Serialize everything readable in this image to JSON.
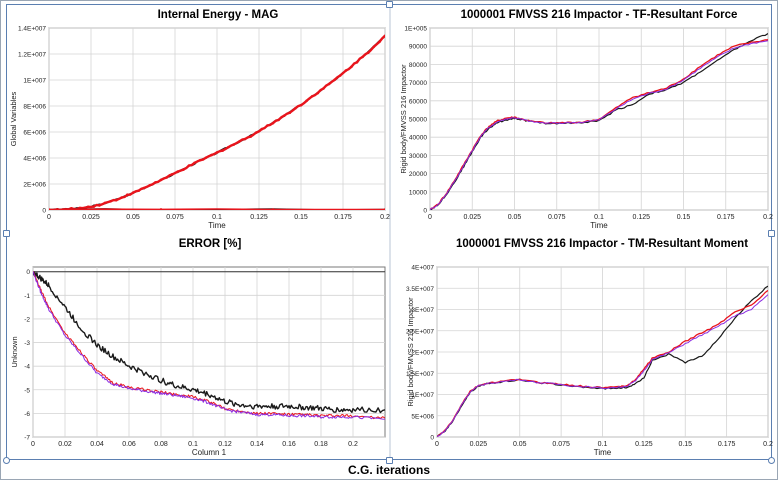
{
  "footer_title": "C.G. iterations",
  "colors": {
    "red": "#e8141c",
    "black": "#1a1a1a",
    "purple": "#8a2be2",
    "blue": "#3b3bd6",
    "grid": "#d4d4d4"
  },
  "chart_data": [
    {
      "id": "energy",
      "type": "line",
      "title": "Internal Energy - MAG",
      "xlabel": "Time",
      "ylabel": "Global Variables",
      "xlim": [
        0,
        0.2
      ],
      "ylim": [
        0,
        14000000
      ],
      "xticks": [
        0,
        0.025,
        0.05,
        0.075,
        0.1,
        0.125,
        0.15,
        0.175,
        0.2
      ],
      "xtick_labels": [
        "0",
        "0.025",
        "0.05",
        "0.075",
        "0.1",
        "0.125",
        "0.15",
        "0.175",
        "0.2"
      ],
      "yticks": [
        0,
        2000000,
        4000000,
        6000000,
        8000000,
        10000000,
        12000000,
        14000000
      ],
      "ytick_labels": [
        "0",
        "2E+006",
        "4E+006",
        "6E+006",
        "8E+006",
        "1E+007",
        "1.2E+007",
        "1.4E+007"
      ],
      "grid": true,
      "series": [
        {
          "color": "#1a1a1a",
          "width": 1.6,
          "x": [
            0,
            0.01,
            0.02,
            0.03,
            0.04,
            0.05,
            0.06,
            0.07,
            0.08,
            0.09,
            0.1,
            0.11,
            0.12,
            0.13,
            0.14,
            0.15,
            0.16,
            0.17,
            0.18,
            0.19,
            0.2
          ],
          "y": [
            0,
            40000,
            150000,
            400000,
            800000,
            1300000,
            1900000,
            2500000,
            3150000,
            3800000,
            4400000,
            5050000,
            5700000,
            6450000,
            7250000,
            8100000,
            9050000,
            10000000,
            11050000,
            12150000,
            13400000
          ]
        },
        {
          "color": "#e8141c",
          "width": 2.4,
          "markers": true,
          "x": [
            0,
            0.01,
            0.02,
            0.03,
            0.04,
            0.05,
            0.06,
            0.07,
            0.08,
            0.09,
            0.1,
            0.11,
            0.12,
            0.13,
            0.14,
            0.15,
            0.16,
            0.17,
            0.18,
            0.19,
            0.2
          ],
          "y": [
            0,
            40000,
            150000,
            400000,
            800000,
            1300000,
            1900000,
            2500000,
            3150000,
            3800000,
            4400000,
            5050000,
            5700000,
            6450000,
            7250000,
            8100000,
            9050000,
            10000000,
            11050000,
            12150000,
            13400000
          ]
        },
        {
          "color": "#1a1a1a",
          "width": 1.2,
          "x": [
            0,
            0.2
          ],
          "y": [
            50000,
            50000
          ]
        },
        {
          "color": "#e8141c",
          "width": 1.6,
          "markers": true,
          "x": [
            0,
            0.2
          ],
          "y": [
            30000,
            30000
          ]
        }
      ]
    },
    {
      "id": "force",
      "type": "line",
      "title": "1000001 FMVSS 216 Impactor - TF-Resultant Force",
      "xlabel": "Time",
      "ylabel": "Rigid body/FMVSS 216 Impactor",
      "xlim": [
        0,
        0.2
      ],
      "ylim": [
        0,
        100000
      ],
      "xticks": [
        0,
        0.025,
        0.05,
        0.075,
        0.1,
        0.125,
        0.15,
        0.175,
        0.2
      ],
      "xtick_labels": [
        "0",
        "0.025",
        "0.05",
        "0.075",
        "0.1",
        "0.125",
        "0.15",
        "0.175",
        "0.2"
      ],
      "yticks": [
        0,
        10000,
        20000,
        30000,
        40000,
        50000,
        60000,
        70000,
        80000,
        90000,
        100000
      ],
      "ytick_labels": [
        "0",
        "10000",
        "20000",
        "30000",
        "40000",
        "50000",
        "60000",
        "70000",
        "80000",
        "90000",
        "1E+005"
      ],
      "grid": true,
      "series": [
        {
          "color": "#1a1a1a",
          "width": 1.2,
          "x": [
            0,
            0.005,
            0.01,
            0.015,
            0.02,
            0.025,
            0.03,
            0.035,
            0.04,
            0.045,
            0.05,
            0.055,
            0.06,
            0.07,
            0.08,
            0.09,
            0.1,
            0.11,
            0.12,
            0.13,
            0.14,
            0.15,
            0.16,
            0.17,
            0.18,
            0.19,
            0.2
          ],
          "y": [
            0,
            3000,
            9000,
            16000,
            24000,
            32000,
            40000,
            45000,
            48000,
            49500,
            50500,
            49500,
            48500,
            47500,
            47800,
            48000,
            49000,
            55000,
            58000,
            64000,
            66000,
            70000,
            76000,
            82000,
            88000,
            93000,
            97000
          ]
        },
        {
          "color": "#e8141c",
          "width": 1.3,
          "x": [
            0,
            0.005,
            0.01,
            0.015,
            0.02,
            0.025,
            0.03,
            0.035,
            0.04,
            0.045,
            0.05,
            0.055,
            0.06,
            0.07,
            0.08,
            0.09,
            0.1,
            0.11,
            0.12,
            0.13,
            0.14,
            0.15,
            0.16,
            0.17,
            0.18,
            0.19,
            0.2
          ],
          "y": [
            0,
            3500,
            9500,
            17000,
            25000,
            33000,
            41000,
            46000,
            49000,
            50500,
            51000,
            49800,
            48700,
            47700,
            48000,
            48300,
            49800,
            56000,
            62000,
            64500,
            67000,
            72000,
            79000,
            85000,
            90000,
            92000,
            93500
          ]
        },
        {
          "color": "#8a2be2",
          "width": 1.0,
          "x": [
            0,
            0.005,
            0.01,
            0.015,
            0.02,
            0.025,
            0.03,
            0.035,
            0.04,
            0.045,
            0.05,
            0.055,
            0.06,
            0.07,
            0.08,
            0.09,
            0.1,
            0.11,
            0.12,
            0.13,
            0.14,
            0.15,
            0.16,
            0.17,
            0.18,
            0.19,
            0.2
          ],
          "y": [
            0,
            3200,
            9200,
            16500,
            24500,
            32500,
            40500,
            45500,
            48500,
            50000,
            50800,
            49600,
            48600,
            47600,
            47900,
            48200,
            49500,
            55500,
            61000,
            64200,
            66500,
            71500,
            78000,
            84000,
            89000,
            91500,
            93000
          ]
        }
      ]
    },
    {
      "id": "error",
      "type": "line",
      "title": "ERROR [%]",
      "xlabel": "Column 1",
      "ylabel": "Unknown",
      "xlim": [
        0,
        0.22
      ],
      "ylim": [
        -7,
        0.2
      ],
      "xticks": [
        0,
        0.02,
        0.04,
        0.06,
        0.08,
        0.1,
        0.12,
        0.14,
        0.16,
        0.18,
        0.2
      ],
      "xtick_labels": [
        "0",
        "0.02",
        "0.04",
        "0.06",
        "0.08",
        "0.1",
        "0.12",
        "0.14",
        "0.16",
        "0.18",
        "0.2"
      ],
      "yticks": [
        0,
        -1,
        -2,
        -3,
        -4,
        -5,
        -6,
        -7
      ],
      "ytick_labels": [
        "0",
        "-1",
        "-2",
        "-3",
        "-4",
        "-5",
        "-6",
        "-7"
      ],
      "grid": true,
      "zero_line": true,
      "series": [
        {
          "color": "#1a1a1a",
          "width": 1.4,
          "jagged": 0.12,
          "x": [
            0,
            0.005,
            0.01,
            0.02,
            0.03,
            0.04,
            0.05,
            0.06,
            0.07,
            0.08,
            0.09,
            0.1,
            0.11,
            0.12,
            0.13,
            0.14,
            0.15,
            0.16,
            0.17,
            0.18,
            0.19,
            0.2,
            0.22
          ],
          "y": [
            0,
            -0.3,
            -0.6,
            -1.5,
            -2.4,
            -3.1,
            -3.6,
            -4.0,
            -4.3,
            -4.6,
            -4.85,
            -5.0,
            -5.2,
            -5.5,
            -5.65,
            -5.7,
            -5.7,
            -5.7,
            -5.75,
            -5.8,
            -5.85,
            -5.85,
            -5.85
          ]
        },
        {
          "color": "#e8141c",
          "width": 1.0,
          "jagged": 0.06,
          "x": [
            0,
            0.005,
            0.01,
            0.02,
            0.03,
            0.04,
            0.05,
            0.06,
            0.07,
            0.08,
            0.09,
            0.1,
            0.11,
            0.12,
            0.13,
            0.14,
            0.15,
            0.16,
            0.17,
            0.18,
            0.19,
            0.2,
            0.22
          ],
          "y": [
            0,
            -0.8,
            -1.5,
            -2.6,
            -3.4,
            -4.2,
            -4.7,
            -4.9,
            -5.0,
            -5.1,
            -5.2,
            -5.3,
            -5.5,
            -5.8,
            -5.9,
            -6.0,
            -6.0,
            -6.05,
            -6.05,
            -6.1,
            -6.1,
            -6.1,
            -6.2
          ]
        },
        {
          "color": "#8a2be2",
          "width": 1.0,
          "jagged": 0.06,
          "x": [
            0,
            0.005,
            0.01,
            0.02,
            0.03,
            0.04,
            0.05,
            0.06,
            0.07,
            0.08,
            0.09,
            0.1,
            0.11,
            0.12,
            0.13,
            0.14,
            0.15,
            0.16,
            0.17,
            0.18,
            0.19,
            0.2,
            0.22
          ],
          "y": [
            0,
            -0.9,
            -1.6,
            -2.7,
            -3.5,
            -4.3,
            -4.75,
            -4.95,
            -5.05,
            -5.15,
            -5.25,
            -5.35,
            -5.55,
            -5.85,
            -5.95,
            -6.05,
            -6.05,
            -6.1,
            -6.1,
            -6.15,
            -6.15,
            -6.15,
            -6.25
          ]
        }
      ]
    },
    {
      "id": "moment",
      "type": "line",
      "title": "1000001 FMVSS 216 Impactor - TM-Resultant Moment",
      "xlabel": "Time",
      "ylabel": "Rigid body/FMVSS 216 Impactor",
      "xlim": [
        0,
        0.2
      ],
      "ylim": [
        0,
        40000000
      ],
      "xticks": [
        0,
        0.025,
        0.05,
        0.075,
        0.1,
        0.125,
        0.15,
        0.175,
        0.2
      ],
      "xtick_labels": [
        "0",
        "0.025",
        "0.05",
        "0.075",
        "0.1",
        "0.125",
        "0.15",
        "0.175",
        "0.2"
      ],
      "yticks": [
        0,
        5000000,
        10000000,
        15000000,
        20000000,
        25000000,
        30000000,
        35000000,
        40000000
      ],
      "ytick_labels": [
        "0",
        "5E+006",
        "1E+007",
        "1.5E+007",
        "2E+007",
        "2.5E+007",
        "3E+007",
        "3.5E+007",
        "4E+007"
      ],
      "grid": true,
      "series": [
        {
          "color": "#1a1a1a",
          "width": 1.2,
          "x": [
            0,
            0.005,
            0.01,
            0.015,
            0.02,
            0.025,
            0.03,
            0.04,
            0.05,
            0.06,
            0.07,
            0.08,
            0.09,
            0.1,
            0.11,
            0.115,
            0.12,
            0.125,
            0.13,
            0.14,
            0.15,
            0.16,
            0.17,
            0.18,
            0.19,
            0.2
          ],
          "y": [
            0,
            1500000,
            4000000,
            7500000,
            10500000,
            12000000,
            12500000,
            13000000,
            13500000,
            12800000,
            12500000,
            12000000,
            11700000,
            11400000,
            11500000,
            11700000,
            12500000,
            14000000,
            18000000,
            19500000,
            17500000,
            19000000,
            23000000,
            28000000,
            32000000,
            35500000
          ]
        },
        {
          "color": "#e8141c",
          "width": 1.3,
          "x": [
            0,
            0.005,
            0.01,
            0.015,
            0.02,
            0.025,
            0.03,
            0.04,
            0.05,
            0.06,
            0.07,
            0.08,
            0.09,
            0.1,
            0.11,
            0.115,
            0.12,
            0.125,
            0.13,
            0.14,
            0.15,
            0.16,
            0.17,
            0.18,
            0.19,
            0.2
          ],
          "y": [
            0,
            1600000,
            4200000,
            7800000,
            10700000,
            12100000,
            12600000,
            13100000,
            13600000,
            12900000,
            12600000,
            12200000,
            11900000,
            11600000,
            11800000,
            12200000,
            13500000,
            16000000,
            18500000,
            20000000,
            22500000,
            24500000,
            26500000,
            29500000,
            31000000,
            34500000
          ]
        },
        {
          "color": "#8a2be2",
          "width": 1.0,
          "x": [
            0,
            0.005,
            0.01,
            0.015,
            0.02,
            0.025,
            0.03,
            0.04,
            0.05,
            0.06,
            0.07,
            0.08,
            0.09,
            0.1,
            0.11,
            0.115,
            0.12,
            0.125,
            0.13,
            0.14,
            0.15,
            0.16,
            0.17,
            0.18,
            0.19,
            0.2
          ],
          "y": [
            0,
            1550000,
            4100000,
            7700000,
            10600000,
            12000000,
            12550000,
            13050000,
            13550000,
            12850000,
            12550000,
            12100000,
            11800000,
            11500000,
            11700000,
            12000000,
            13200000,
            15600000,
            18200000,
            19800000,
            22000000,
            24000000,
            26000000,
            28500000,
            30000000,
            33500000
          ]
        }
      ]
    }
  ]
}
